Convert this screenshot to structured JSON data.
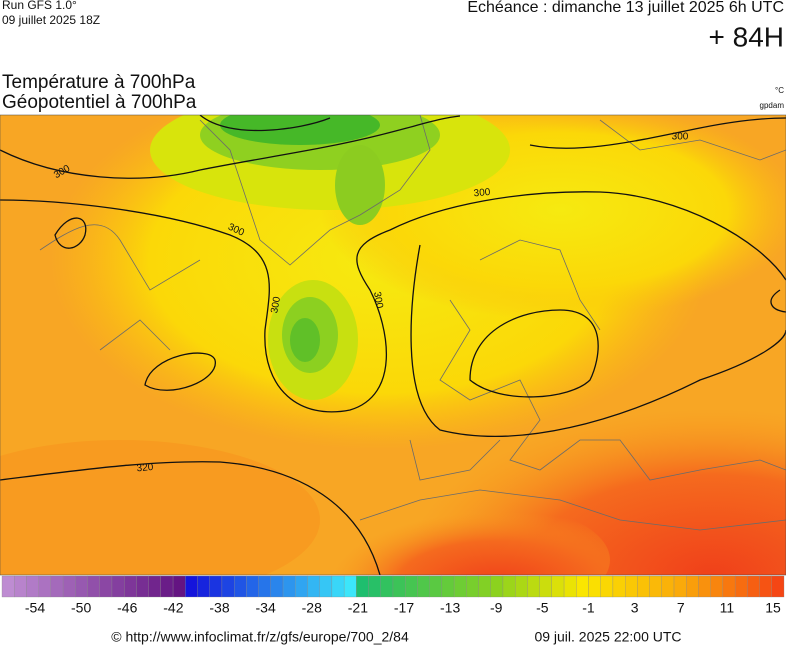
{
  "header": {
    "run": "Run GFS 1.0°",
    "date": "09 juillet 2025 18Z",
    "valid": "Echéance : dimanche 13 juillet 2025 6h UTC",
    "lead": "+ 84H",
    "title1": "Température à 700hPa",
    "title2": "Géopotentiel à 700hPa",
    "unit1": "°C",
    "unit2": "gpdam"
  },
  "contour_labels": [
    "300",
    "300",
    "300",
    "300",
    "300",
    "300",
    "320"
  ],
  "colorbar": {
    "labels": [
      "-54",
      "-50",
      "-46",
      "-42",
      "-38",
      "-34",
      "-28",
      "-21",
      "-17",
      "-13",
      "-9",
      "-5",
      "-1",
      "3",
      "7",
      "11",
      "15"
    ]
  },
  "footer": {
    "url": "© http://www.infoclimat.fr/z/gfs/europe/700_2/84",
    "time": "09 juil. 2025 22:00 UTC"
  }
}
